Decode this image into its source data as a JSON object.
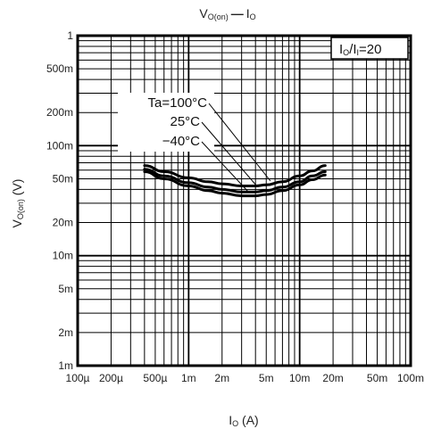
{
  "chart_data": {
    "type": "line",
    "title_main": "V",
    "title_sub": "O(on)",
    "title_dash": "—",
    "title_tail_main": "I",
    "title_tail_sub": "O",
    "xlabel_main": "I",
    "xlabel_sub": "O",
    "xlabel_unit": " (A)",
    "ylabel_main": "V",
    "ylabel_sub": "O(on)",
    "ylabel_unit": " (V)",
    "x_scale": "log",
    "y_scale": "log",
    "xlim": [
      0.0001,
      0.1
    ],
    "ylim": [
      0.001,
      1
    ],
    "grid": true,
    "x_ticks": [
      {
        "value": 0.0001,
        "label": "100µ"
      },
      {
        "value": 0.0002,
        "label": "200µ"
      },
      {
        "value": 0.0005,
        "label": "500µ"
      },
      {
        "value": 0.001,
        "label": "1m"
      },
      {
        "value": 0.002,
        "label": "2m"
      },
      {
        "value": 0.005,
        "label": "5m"
      },
      {
        "value": 0.01,
        "label": "10m"
      },
      {
        "value": 0.02,
        "label": "20m"
      },
      {
        "value": 0.05,
        "label": "50m"
      },
      {
        "value": 0.1,
        "label": "100m"
      }
    ],
    "y_ticks": [
      {
        "value": 0.001,
        "label": "1m"
      },
      {
        "value": 0.002,
        "label": "2m"
      },
      {
        "value": 0.005,
        "label": "5m"
      },
      {
        "value": 0.01,
        "label": "10m"
      },
      {
        "value": 0.02,
        "label": "20m"
      },
      {
        "value": 0.05,
        "label": "50m"
      },
      {
        "value": 0.1,
        "label": "100m"
      },
      {
        "value": 0.2,
        "label": "200m"
      },
      {
        "value": 0.5,
        "label": "500m"
      },
      {
        "value": 1,
        "label": "1"
      }
    ],
    "condition": {
      "label_main1": "I",
      "label_sub1": "O",
      "label_mid": "/I",
      "label_sub2": "I",
      "label_tail": "=20"
    },
    "series": [
      {
        "name": "Ta=100°C",
        "x": [
          0.0004,
          0.0006,
          0.001,
          0.0015,
          0.002,
          0.003,
          0.004,
          0.005,
          0.007,
          0.01,
          0.013,
          0.017
        ],
        "y": [
          0.066,
          0.058,
          0.051,
          0.047,
          0.045,
          0.043,
          0.043,
          0.044,
          0.047,
          0.053,
          0.059,
          0.066
        ]
      },
      {
        "name": "25°C",
        "x": [
          0.0004,
          0.0006,
          0.001,
          0.0015,
          0.002,
          0.003,
          0.004,
          0.005,
          0.007,
          0.01,
          0.013,
          0.017
        ],
        "y": [
          0.061,
          0.053,
          0.046,
          0.042,
          0.04,
          0.038,
          0.038,
          0.039,
          0.042,
          0.047,
          0.053,
          0.058
        ]
      },
      {
        "name": "−40°C",
        "x": [
          0.0004,
          0.0006,
          0.001,
          0.0015,
          0.002,
          0.003,
          0.004,
          0.005,
          0.007,
          0.01,
          0.013,
          0.017
        ],
        "y": [
          0.058,
          0.05,
          0.043,
          0.039,
          0.037,
          0.035,
          0.035,
          0.036,
          0.039,
          0.044,
          0.049,
          0.054
        ]
      }
    ]
  }
}
